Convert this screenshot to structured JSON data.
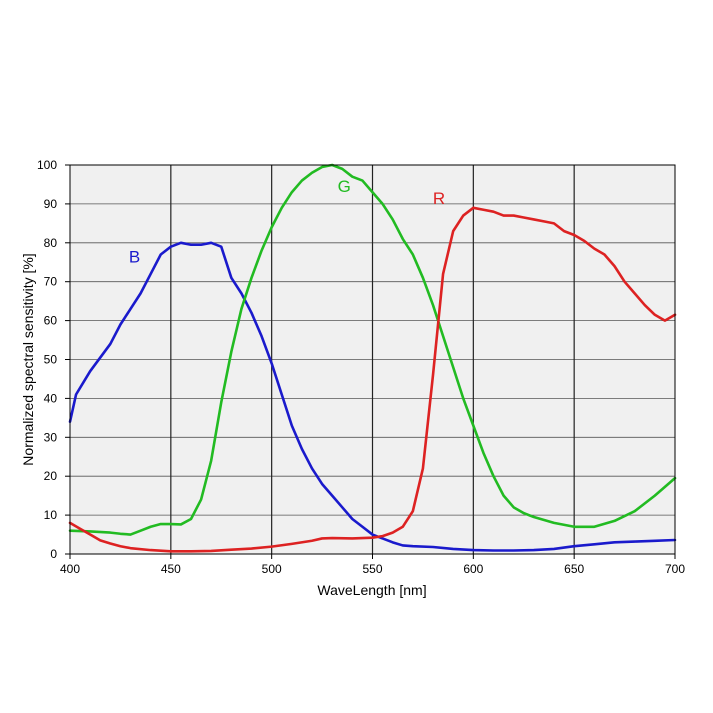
{
  "chart_data": {
    "type": "line",
    "title": "",
    "xlabel": "WaveLength [nm]",
    "ylabel": "Normalized spectral sensitivity [%]",
    "xlim": [
      400,
      700
    ],
    "ylim": [
      0,
      100
    ],
    "x_ticks": [
      400,
      450,
      500,
      550,
      600,
      650,
      700
    ],
    "y_ticks": [
      0,
      10,
      20,
      30,
      40,
      50,
      60,
      70,
      80,
      90,
      100
    ],
    "grid": {
      "vertical_major": [
        450,
        500,
        550,
        600,
        650
      ],
      "horizontal": [
        10,
        20,
        30,
        40,
        50,
        60,
        70,
        80,
        90
      ]
    },
    "background_color": "#f0f0f0",
    "legend": "inline labels",
    "series": [
      {
        "name": "B",
        "color": "#1a1acc",
        "label_at": [
          432,
          75
        ],
        "points": [
          [
            400,
            34
          ],
          [
            403,
            41
          ],
          [
            410,
            47
          ],
          [
            420,
            54
          ],
          [
            425,
            59
          ],
          [
            430,
            63
          ],
          [
            435,
            67
          ],
          [
            440,
            72
          ],
          [
            445,
            77
          ],
          [
            450,
            79
          ],
          [
            455,
            80
          ],
          [
            460,
            79.5
          ],
          [
            465,
            79.5
          ],
          [
            470,
            80
          ],
          [
            475,
            79
          ],
          [
            480,
            71
          ],
          [
            485,
            67
          ],
          [
            490,
            62
          ],
          [
            495,
            56
          ],
          [
            500,
            49
          ],
          [
            505,
            41
          ],
          [
            510,
            33
          ],
          [
            515,
            27
          ],
          [
            520,
            22
          ],
          [
            525,
            18
          ],
          [
            530,
            15
          ],
          [
            535,
            12
          ],
          [
            540,
            9
          ],
          [
            545,
            7
          ],
          [
            550,
            5
          ],
          [
            555,
            4
          ],
          [
            560,
            3
          ],
          [
            565,
            2.2
          ],
          [
            570,
            2
          ],
          [
            580,
            1.8
          ],
          [
            590,
            1.3
          ],
          [
            600,
            1
          ],
          [
            610,
            0.9
          ],
          [
            620,
            0.9
          ],
          [
            630,
            1
          ],
          [
            640,
            1.3
          ],
          [
            650,
            2
          ],
          [
            660,
            2.5
          ],
          [
            670,
            3
          ],
          [
            680,
            3.2
          ],
          [
            690,
            3.4
          ],
          [
            700,
            3.6
          ]
        ]
      },
      {
        "name": "G",
        "color": "#22bb22",
        "label_at": [
          536,
          93
        ],
        "points": [
          [
            400,
            6
          ],
          [
            410,
            5.8
          ],
          [
            420,
            5.5
          ],
          [
            425,
            5.2
          ],
          [
            430,
            5
          ],
          [
            435,
            6
          ],
          [
            440,
            7
          ],
          [
            445,
            7.7
          ],
          [
            450,
            7.7
          ],
          [
            455,
            7.6
          ],
          [
            460,
            9
          ],
          [
            465,
            14
          ],
          [
            470,
            24
          ],
          [
            475,
            39
          ],
          [
            480,
            52
          ],
          [
            485,
            63
          ],
          [
            490,
            71
          ],
          [
            495,
            78
          ],
          [
            500,
            84
          ],
          [
            505,
            89
          ],
          [
            510,
            93
          ],
          [
            515,
            96
          ],
          [
            520,
            98
          ],
          [
            525,
            99.5
          ],
          [
            530,
            100
          ],
          [
            535,
            99
          ],
          [
            540,
            97
          ],
          [
            545,
            96
          ],
          [
            550,
            93
          ],
          [
            555,
            90
          ],
          [
            560,
            86
          ],
          [
            565,
            81
          ],
          [
            570,
            77
          ],
          [
            575,
            71
          ],
          [
            580,
            64
          ],
          [
            585,
            56
          ],
          [
            590,
            48
          ],
          [
            595,
            40
          ],
          [
            600,
            33
          ],
          [
            605,
            26
          ],
          [
            610,
            20
          ],
          [
            615,
            15
          ],
          [
            620,
            12
          ],
          [
            625,
            10.5
          ],
          [
            630,
            9.5
          ],
          [
            640,
            8
          ],
          [
            650,
            7
          ],
          [
            660,
            7
          ],
          [
            670,
            8.5
          ],
          [
            680,
            11
          ],
          [
            690,
            15
          ],
          [
            700,
            19.5
          ]
        ]
      },
      {
        "name": "R",
        "color": "#dd2222",
        "label_at": [
          583,
          90
        ],
        "points": [
          [
            400,
            8
          ],
          [
            405,
            6.5
          ],
          [
            410,
            5
          ],
          [
            415,
            3.5
          ],
          [
            420,
            2.7
          ],
          [
            425,
            2
          ],
          [
            430,
            1.5
          ],
          [
            440,
            1
          ],
          [
            450,
            0.7
          ],
          [
            460,
            0.7
          ],
          [
            470,
            0.8
          ],
          [
            480,
            1.1
          ],
          [
            490,
            1.4
          ],
          [
            500,
            1.9
          ],
          [
            510,
            2.6
          ],
          [
            520,
            3.4
          ],
          [
            525,
            4
          ],
          [
            530,
            4.1
          ],
          [
            540,
            4
          ],
          [
            550,
            4.2
          ],
          [
            555,
            4.6
          ],
          [
            560,
            5.5
          ],
          [
            565,
            7
          ],
          [
            570,
            11
          ],
          [
            575,
            22
          ],
          [
            580,
            46
          ],
          [
            585,
            72
          ],
          [
            590,
            83
          ],
          [
            595,
            87
          ],
          [
            600,
            89
          ],
          [
            605,
            88.5
          ],
          [
            610,
            88
          ],
          [
            615,
            87
          ],
          [
            620,
            87
          ],
          [
            625,
            86.5
          ],
          [
            630,
            86
          ],
          [
            635,
            85.5
          ],
          [
            640,
            85
          ],
          [
            645,
            83
          ],
          [
            650,
            82
          ],
          [
            655,
            80.5
          ],
          [
            660,
            78.5
          ],
          [
            665,
            77
          ],
          [
            670,
            74
          ],
          [
            675,
            70
          ],
          [
            680,
            67
          ],
          [
            685,
            64
          ],
          [
            690,
            61.5
          ],
          [
            695,
            60
          ],
          [
            700,
            61.5
          ]
        ]
      }
    ]
  }
}
